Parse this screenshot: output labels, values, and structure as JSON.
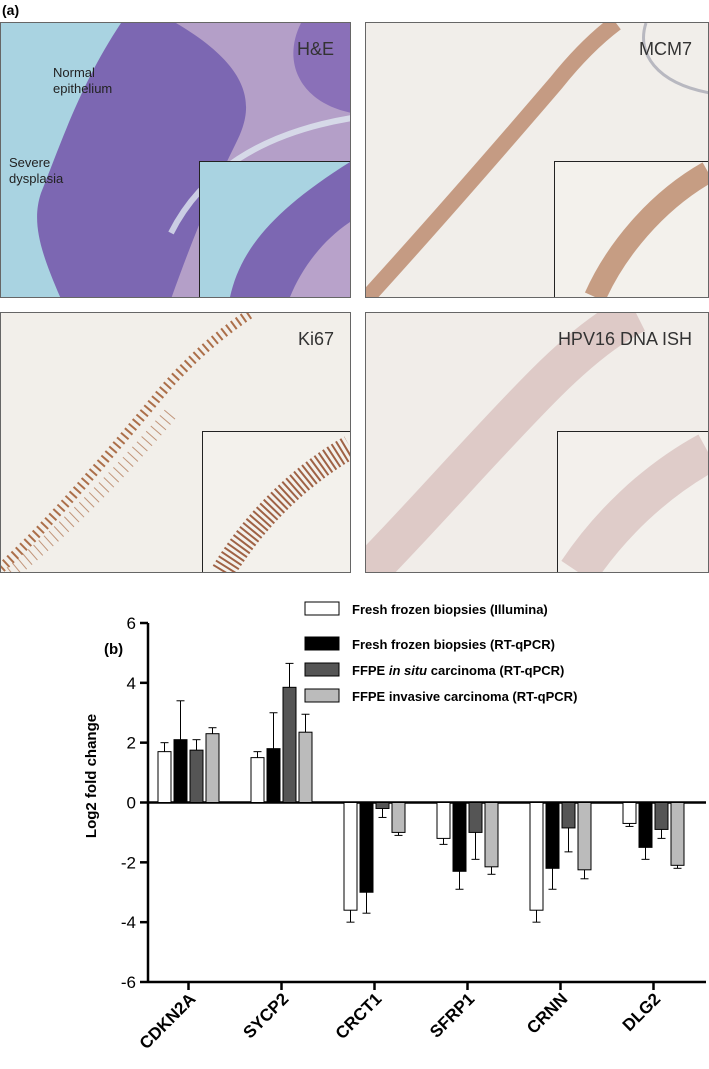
{
  "panel_a": {
    "label": "(a)",
    "panels": [
      {
        "stain": "H&E",
        "notes": [
          "Normal",
          "epithelium",
          "Severe",
          "dysplasia"
        ]
      },
      {
        "stain": "MCM7"
      },
      {
        "stain": "Ki67"
      },
      {
        "stain": "HPV16 DNA ISH"
      }
    ],
    "colors": {
      "he_bg": "#a9d3e1",
      "he_tissue": "#7c67b2",
      "ihc_bg": "#f1eeea",
      "brown": "#a0582e"
    }
  },
  "chart_data": {
    "panel_label": "(b)",
    "type": "bar",
    "categories": [
      "CDKN2A",
      "SYCP2",
      "CRCT1",
      "SFRP1",
      "CRNN",
      "DLG2"
    ],
    "ylabel": "Log2 fold change",
    "xlabel": "",
    "ylim": [
      -6,
      6
    ],
    "yticks": [
      "6",
      "4",
      "2",
      "0",
      "-2",
      "-4",
      "-6"
    ],
    "grid": false,
    "legend_position": "top-right",
    "series": [
      {
        "name": "Fresh frozen biopsies (Illumina)",
        "color": "#ffffff",
        "values": [
          1.7,
          1.5,
          -3.6,
          -1.2,
          -3.6,
          -0.7
        ],
        "errors": [
          0.3,
          0.2,
          0.4,
          0.2,
          0.4,
          0.1
        ]
      },
      {
        "name": "Fresh frozen biopsies (RT-qPCR)",
        "color": "#000000",
        "values": [
          2.1,
          1.8,
          -3.0,
          -2.3,
          -2.2,
          -1.5
        ],
        "errors": [
          1.3,
          1.2,
          0.7,
          0.6,
          0.7,
          0.4
        ]
      },
      {
        "name_parts": [
          "FFPE ",
          "in situ",
          " carcinoma (RT-qPCR)"
        ],
        "color": "#555555",
        "values": [
          1.75,
          3.85,
          -0.2,
          -1.0,
          -0.85,
          -0.9
        ],
        "errors": [
          0.35,
          0.8,
          0.3,
          0.9,
          0.8,
          0.3
        ]
      },
      {
        "name": "FFPE invasive carcinoma (RT-qPCR)",
        "color": "#bbbbbb",
        "values": [
          2.3,
          2.35,
          -1.0,
          -2.15,
          -2.25,
          -2.1
        ],
        "errors": [
          0.2,
          0.6,
          0.1,
          0.25,
          0.3,
          0.1
        ]
      }
    ]
  }
}
